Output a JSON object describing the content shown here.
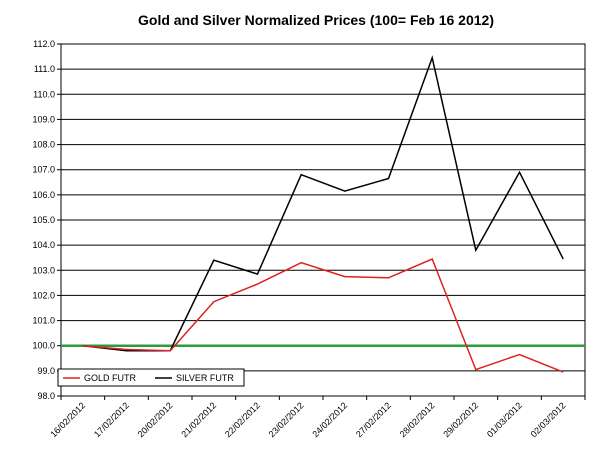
{
  "chart_data": {
    "type": "line",
    "title": "Gold and Silver Normalized Prices  (100= Feb 16 2012)",
    "xlabel": "",
    "ylabel": "",
    "categories": [
      "16/02/2012",
      "17/02/2012",
      "20/02/2012",
      "21/02/2012",
      "22/02/2012",
      "23/02/2012",
      "24/02/2012",
      "27/02/2012",
      "28/02/2012",
      "29/02/2012",
      "01/03/2012",
      "02/03/2012"
    ],
    "ylim": [
      98.0,
      112.0
    ],
    "ytick_step": 1.0,
    "yticks": [
      "98.0",
      "99.0",
      "100.0",
      "101.0",
      "102.0",
      "103.0",
      "104.0",
      "105.0",
      "106.0",
      "107.0",
      "108.0",
      "109.0",
      "110.0",
      "111.0",
      "112.0"
    ],
    "grid": true,
    "legend_position": "bottom-left",
    "reference_line": {
      "value": 100.0,
      "color": "#2e9b3e"
    },
    "series": [
      {
        "name": "GOLD  FUTR",
        "color": "#e02020",
        "values": [
          100.0,
          99.85,
          99.8,
          101.75,
          102.45,
          103.3,
          102.75,
          102.7,
          103.45,
          99.05,
          99.65,
          98.95
        ]
      },
      {
        "name": "SILVER  FUTR",
        "color": "#000000",
        "values": [
          100.0,
          99.8,
          99.8,
          103.4,
          102.85,
          106.8,
          106.15,
          106.65,
          111.45,
          103.8,
          106.9,
          103.45
        ]
      }
    ]
  }
}
